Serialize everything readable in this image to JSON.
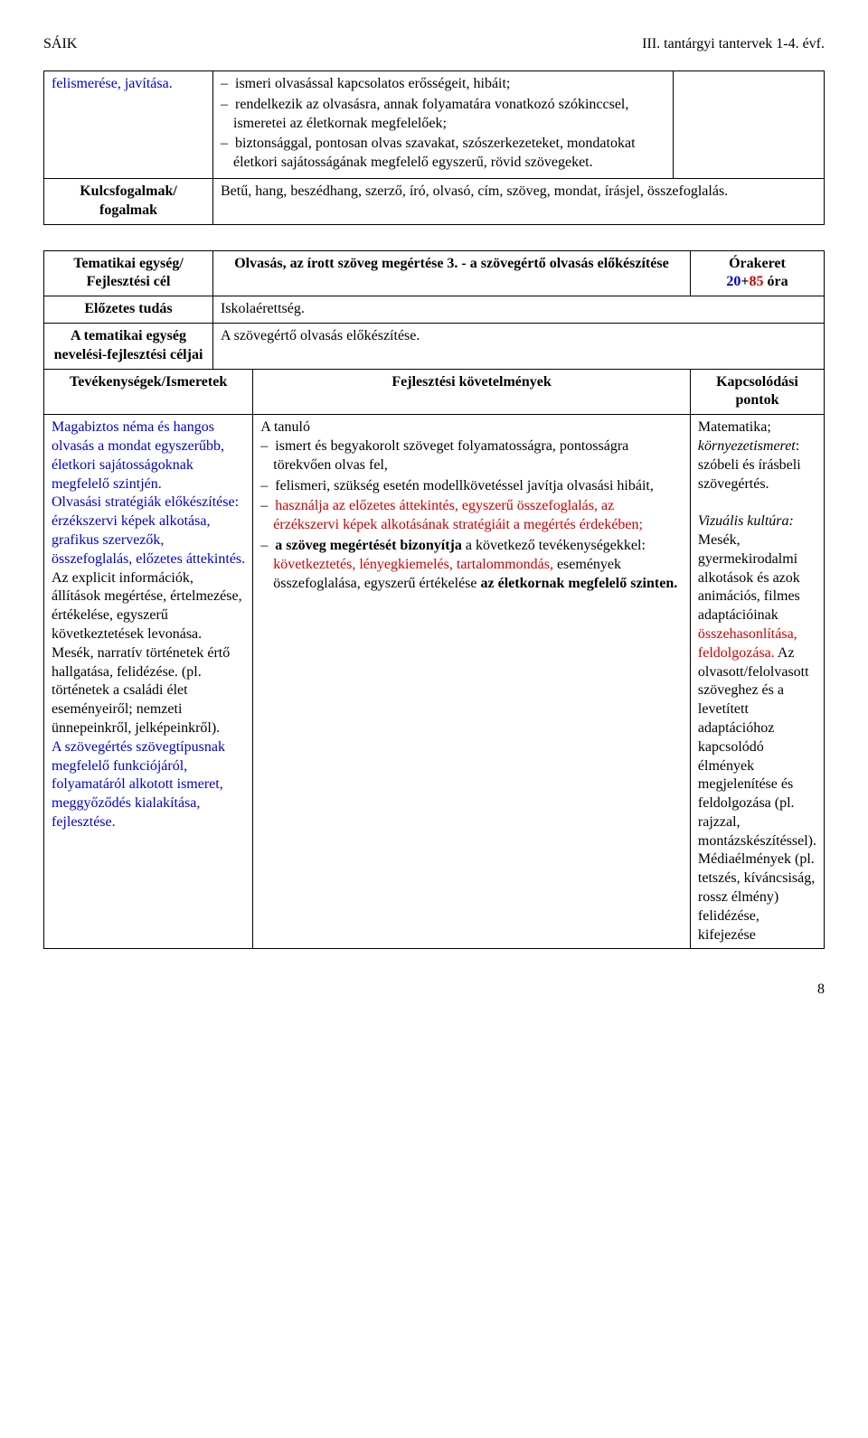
{
  "header": {
    "left": "SÁIK",
    "right": "III. tantárgyi tantervek 1-4. évf."
  },
  "table1": {
    "r1c1": "felismerése, javítása.",
    "r1c2_items": [
      "ismeri olvasással kapcsolatos erősségeit, hibáit;",
      "rendelkezik az olvasásra, annak folyamatára vonatkozó szókinccsel, ismeretei az életkornak megfelelőek;",
      "biztonsággal, pontosan olvas szavakat, szószerkezeteket, mondatokat életkori sajátosságának megfelelő egyszerű, rövid szövegeket."
    ],
    "r2c1": "Kulcsfogalmak/ fogalmak",
    "r2c2": "Betű, hang, beszédhang, szerző, író, olvasó, cím, szöveg, mondat, írásjel, összefoglalás."
  },
  "table2": {
    "hdr_a": "Tematikai egység/ Fejlesztési cél",
    "hdr_b": "Olvasás, az írott szöveg megértése 3. - a szövegértő olvasás előkészítése",
    "hdr_c_label": "Órakeret",
    "hdr_c_hours_a": "20",
    "hdr_c_hours_plus": "+",
    "hdr_c_hours_b": "85",
    "hdr_c_hours_unit": " óra",
    "row2a": "Előzetes tudás",
    "row2b": "Iskolaérettség.",
    "row3a": "A tematikai egység nevelési-fejlesztési céljai",
    "row3b": "A szövegértő olvasás előkészítése.",
    "ths": {
      "a": "Tevékenységek/Ismeretek",
      "b": "Fejlesztési követelmények",
      "c": "Kapcsolódási pontok"
    },
    "colA": {
      "p1": "Magabiztos néma és hangos olvasás a mondat egyszerűbb, életkori sajátosságoknak megfelelő szintjén.",
      "p2": "Olvasási stratégiák előkészítése: érzékszervi képek alkotása, grafikus szervezők, összefoglalás, előzetes áttekintés.",
      "p3_a": "Az explicit információk, állítások megértése, értelmezése, értékelése, egyszerű következtetések levonása.",
      "p3_b": "Mesék, narratív történetek értő hallgatása, felidézése. (pl. történetek a családi élet eseményeiről; nemzeti ünnepeinkről, jelképeinkről).",
      "p4": "A szövegértés szövegtípusnak megfelelő funkciójáról, folyamatáról alkotott ismeret, meggyőződés kialakítása, fejlesztése."
    },
    "colB": {
      "lead": "A tanuló",
      "items": [
        {
          "black": "ismert és begyakorolt szöveget folyamatosságra, pontosságra törekvően olvas fel,"
        },
        {
          "black": "felismeri, szükség esetén modellkövetéssel javítja olvasási hibáit,"
        },
        {
          "red_a": "használja az előzetes áttekintés, egyszerű összefoglalás, az érzékszervi képek alkotásának stratégiáit a megértés érdekében;",
          "black": ""
        },
        {
          "bold_a": "a szöveg megértését bizonyítja",
          "black_a": " a következő tevékenységekkel: ",
          "red_b": "következtetés, lényegkiemelés, tartalommondás,",
          "black_b": " események összefoglalása, egyszerű értékelése ",
          "bold_b": "az életkornak megfelelő szinten."
        }
      ]
    },
    "colC": {
      "p1_label": "Matematika",
      "p1_sep": "; ",
      "p1_em": "környezetismeret",
      "p1_rest": ": szóbeli és írásbeli szövegértés.",
      "p2_em": "Vizuális kultúra:",
      "p2_a": " Mesék, gyermekirodalmi alkotások és azok animációs, filmes adaptációinak ",
      "p2_red": "összehasonlítása, feldolgozása.",
      "p2_b": " Az olvasott/felolvasott szöveghez és a levetített adaptációhoz kapcsolódó élmények megjelenítése és feldolgozása (pl. rajzzal, montázskészítéssel). Médiaélmények (pl. tetszés, kíváncsiság, rossz élmény) felidézése, kifejezése"
    }
  },
  "page_number": "8",
  "colors": {
    "blue": "#0000cc",
    "red": "#cc0000"
  }
}
